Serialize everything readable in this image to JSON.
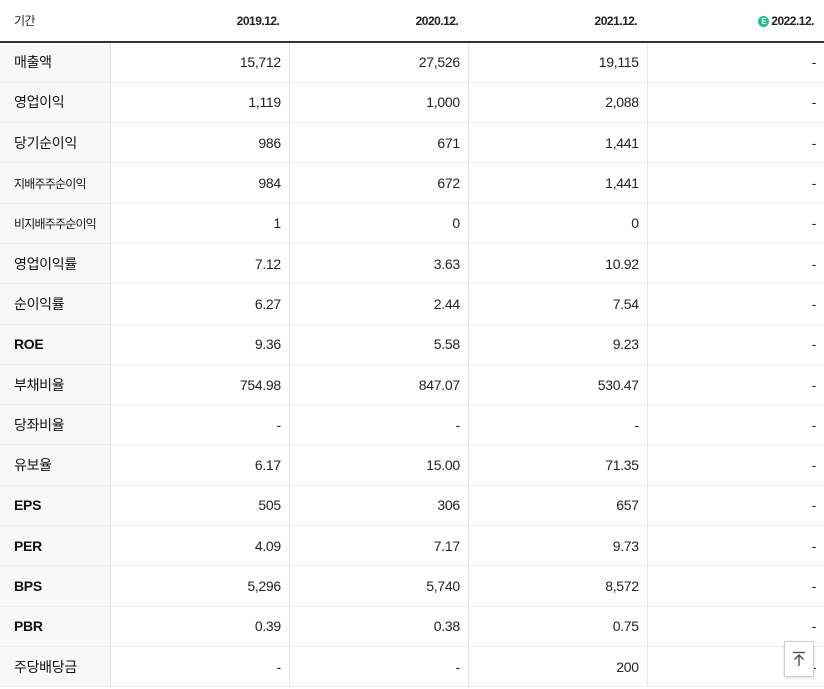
{
  "header": {
    "label": "기간",
    "periods": [
      "2019.12.",
      "2020.12.",
      "2021.12.",
      "2022.12."
    ],
    "estimate_marker": "E",
    "estimate_color": "#1ec28b"
  },
  "rows": [
    {
      "label": "매출액",
      "values": [
        "15,712",
        "27,526",
        "19,115",
        "-"
      ]
    },
    {
      "label": "영업이익",
      "values": [
        "1,119",
        "1,000",
        "2,088",
        "-"
      ]
    },
    {
      "label": "당기순이익",
      "values": [
        "986",
        "671",
        "1,441",
        "-"
      ]
    },
    {
      "label": "지배주주순이익",
      "values": [
        "984",
        "672",
        "1,441",
        "-"
      ]
    },
    {
      "label": "비지배주주순이익",
      "values": [
        "1",
        "0",
        "0",
        "-"
      ]
    },
    {
      "label": "영업이익률",
      "values": [
        "7.12",
        "3.63",
        "10.92",
        "-"
      ]
    },
    {
      "label": "순이익률",
      "values": [
        "6.27",
        "2.44",
        "7.54",
        "-"
      ]
    },
    {
      "label": "ROE",
      "values": [
        "9.36",
        "5.58",
        "9.23",
        "-"
      ]
    },
    {
      "label": "부채비율",
      "values": [
        "754.98",
        "847.07",
        "530.47",
        "-"
      ]
    },
    {
      "label": "당좌비율",
      "values": [
        "-",
        "-",
        "-",
        "-"
      ]
    },
    {
      "label": "유보율",
      "values": [
        "6.17",
        "15.00",
        "71.35",
        "-"
      ]
    },
    {
      "label": "EPS",
      "values": [
        "505",
        "306",
        "657",
        "-"
      ]
    },
    {
      "label": "PER",
      "values": [
        "4.09",
        "7.17",
        "9.73",
        "-"
      ]
    },
    {
      "label": "BPS",
      "values": [
        "5,296",
        "5,740",
        "8,572",
        "-"
      ]
    },
    {
      "label": "PBR",
      "values": [
        "0.39",
        "0.38",
        "0.75",
        "-"
      ]
    },
    {
      "label": "주당배당금",
      "values": [
        "-",
        "-",
        "200",
        "-"
      ]
    }
  ],
  "top_button": {
    "icon": "arrow-up-to-top-icon"
  }
}
